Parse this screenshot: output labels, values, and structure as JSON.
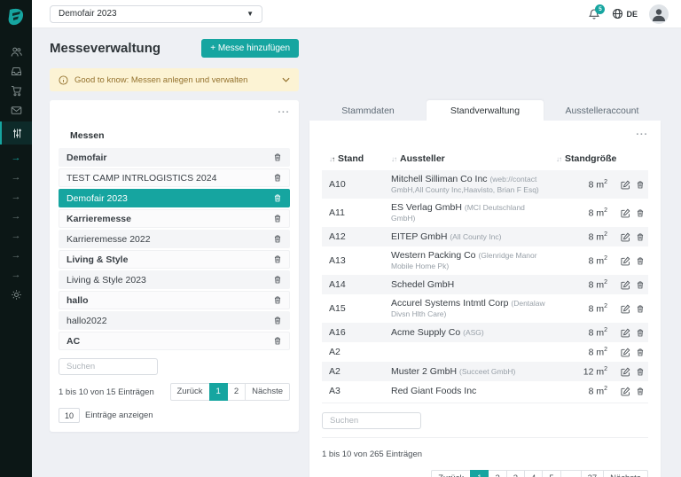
{
  "colors": {
    "accent": "#16A5A0",
    "banner_bg": "#FCF3D4",
    "banner_fg": "#94722E",
    "sidebar_bg": "#0C1716"
  },
  "topbar": {
    "fair_selector_value": "Demofair 2023",
    "notification_count": "5",
    "language": "DE"
  },
  "sidebar": {
    "icons": [
      "logo",
      "users-icon",
      "inbox-icon",
      "cart-icon",
      "mail-icon",
      "sliders-icon",
      "arrow-right-icon",
      "arrow-right-icon",
      "arrow-right-icon",
      "arrow-right-icon",
      "arrow-right-icon",
      "arrow-right-icon",
      "arrow-right-icon",
      "gear-icon"
    ],
    "arrow_glyph": "→"
  },
  "page": {
    "title": "Messeverwaltung",
    "add_button": "+ Messe hinzufügen",
    "banner_text": "Good to know: Messen anlegen und verwalten"
  },
  "messen_panel": {
    "overflow_menu": "...",
    "header": "Messen",
    "items": [
      {
        "label": "Demofair",
        "bold": true,
        "selected": false
      },
      {
        "label": "TEST CAMP INTRLOGISTICS 2024",
        "bold": false,
        "selected": false
      },
      {
        "label": "Demofair 2023",
        "bold": false,
        "selected": true
      },
      {
        "label": "Karrieremesse",
        "bold": true,
        "selected": false
      },
      {
        "label": "Karrieremesse 2022",
        "bold": false,
        "selected": false
      },
      {
        "label": "Living & Style",
        "bold": true,
        "selected": false
      },
      {
        "label": "Living & Style 2023",
        "bold": false,
        "selected": false
      },
      {
        "label": "hallo",
        "bold": true,
        "selected": false
      },
      {
        "label": "hallo2022",
        "bold": false,
        "selected": false
      },
      {
        "label": "AC",
        "bold": true,
        "selected": false
      }
    ],
    "search_placeholder": "Suchen",
    "info": "1 bis 10 von 15 Einträgen",
    "pagination": {
      "prev": "Zurück",
      "pages": [
        "1",
        "2"
      ],
      "active": "1",
      "next": "Nächste"
    },
    "page_size_value": "10",
    "page_size_label": "Einträge anzeigen"
  },
  "tabs": {
    "items": [
      "Stammdaten",
      "Standverwaltung",
      "Ausstelleraccount"
    ],
    "active": "Standverwaltung"
  },
  "stand_panel": {
    "overflow_menu": "...",
    "columns": [
      {
        "label": "Stand",
        "sorted": "asc"
      },
      {
        "label": "Aussteller",
        "sorted": "none"
      },
      {
        "label": "Standgröße",
        "sorted": "none"
      }
    ],
    "rows": [
      {
        "stand": "A10",
        "aussteller": "Mitchell Silliman Co Inc",
        "aussteller_sub": "(web://contact GmbH,All County Inc,Haavisto, Brian F Esq)",
        "groesse": "8 m²"
      },
      {
        "stand": "A11",
        "aussteller": "ES Verlag GmbH",
        "aussteller_sub": "(MCI Deutschland GmbH)",
        "groesse": "8 m²"
      },
      {
        "stand": "A12",
        "aussteller": "EITEP GmbH",
        "aussteller_sub": "(All County Inc)",
        "groesse": "8 m²"
      },
      {
        "stand": "A13",
        "aussteller": "Western Packing Co",
        "aussteller_sub": "(Glenridge Manor Mobile Home Pk)",
        "groesse": "8 m²"
      },
      {
        "stand": "A14",
        "aussteller": "Schedel GmbH",
        "aussteller_sub": "",
        "groesse": "8 m²"
      },
      {
        "stand": "A15",
        "aussteller": "Accurel Systems Intmtl Corp",
        "aussteller_sub": "(Dentalaw Divsn Hlth Care)",
        "groesse": "8 m²"
      },
      {
        "stand": "A16",
        "aussteller": "Acme Supply Co",
        "aussteller_sub": "(ASG)",
        "groesse": "8 m²"
      },
      {
        "stand": "A2",
        "aussteller": "",
        "aussteller_sub": "",
        "groesse": "8 m²"
      },
      {
        "stand": "A2",
        "aussteller": "Muster 2 GmbH",
        "aussteller_sub": "(Succeet GmbH)",
        "groesse": "12 m²"
      },
      {
        "stand": "A3",
        "aussteller": "Red Giant Foods Inc",
        "aussteller_sub": "",
        "groesse": "8 m²"
      }
    ],
    "search_placeholder": "Suchen",
    "info": "1 bis 10 von 265 Einträgen",
    "pagination": {
      "prev": "Zurück",
      "pages": [
        "1",
        "2",
        "3",
        "4",
        "5",
        "...",
        "27"
      ],
      "active": "1",
      "next": "Nächste"
    }
  }
}
